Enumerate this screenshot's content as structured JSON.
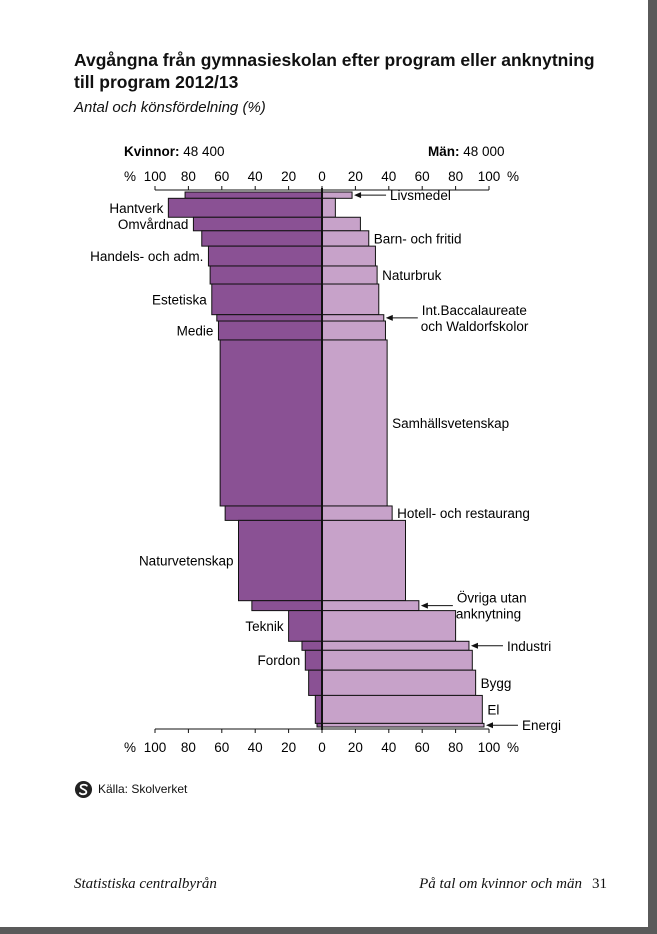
{
  "page": {
    "title": "Avgångna från gymnasieskolan efter program eller anknytning till program 2012/13",
    "subtitle": "Antal och könsfördelning (%)",
    "source": "Källa: Skolverket",
    "footer_left": "Statistiska centralbyrån",
    "footer_right": "På tal om kvinnor och män",
    "page_number": "31"
  },
  "chart_data": {
    "type": "bar",
    "orientation": "horizontal-diverging",
    "left_group": {
      "label": "Kvinnor:",
      "total": "48 400"
    },
    "right_group": {
      "label": "Män:",
      "total": "48 000"
    },
    "axis_ticks": [
      "100",
      "80",
      "60",
      "40",
      "20",
      "0",
      "20",
      "40",
      "60",
      "80",
      "100"
    ],
    "axis_unit": "%",
    "xlim": [
      0,
      100
    ],
    "colors": {
      "women": "#8a5194",
      "men": "#c7a2c9",
      "outline": "#111111"
    },
    "categories": [
      {
        "label": "Livsmedel",
        "side": "right",
        "arrow": true,
        "women": 82,
        "men": 18,
        "count": 700
      },
      {
        "label": "Hantverk",
        "side": "left",
        "arrow": false,
        "women": 92,
        "men": 8,
        "count": 2100
      },
      {
        "label": "Omvårdnad",
        "side": "left",
        "arrow": false,
        "women": 77,
        "men": 23,
        "count": 1500
      },
      {
        "label": "Barn- och fritid",
        "side": "right",
        "arrow": false,
        "women": 72,
        "men": 28,
        "count": 1700
      },
      {
        "label": "Handels- och adm.",
        "side": "left",
        "arrow": false,
        "women": 68,
        "men": 32,
        "count": 2200
      },
      {
        "label": "Naturbruk",
        "side": "right",
        "arrow": false,
        "women": 67,
        "men": 33,
        "count": 2000
      },
      {
        "label": "Estetiska",
        "side": "left",
        "arrow": false,
        "women": 66,
        "men": 34,
        "count": 3400
      },
      {
        "label": "Int.Baccalaureate och Waldorfskolor",
        "side": "right",
        "arrow": true,
        "women": 63,
        "men": 37,
        "count": 700
      },
      {
        "label": "Medie",
        "side": "left",
        "arrow": false,
        "women": 62,
        "men": 38,
        "count": 2100
      },
      {
        "label": "Samhällsvetenskap",
        "side": "right",
        "arrow": false,
        "women": 61,
        "men": 39,
        "count": 18400
      },
      {
        "label": "Hotell- och restaurang",
        "side": "right",
        "arrow": false,
        "women": 58,
        "men": 42,
        "count": 1600
      },
      {
        "label": "Naturvetenskap",
        "side": "left",
        "arrow": false,
        "women": 50,
        "men": 50,
        "count": 8900
      },
      {
        "label": "Övriga utan anknytning",
        "side": "right",
        "arrow": true,
        "women": 42,
        "men": 58,
        "count": 1100
      },
      {
        "label": "Teknik",
        "side": "left",
        "arrow": false,
        "women": 20,
        "men": 80,
        "count": 3400
      },
      {
        "label": "Industri",
        "side": "right",
        "arrow": true,
        "women": 12,
        "men": 88,
        "count": 1000
      },
      {
        "label": "Fordon",
        "side": "left",
        "arrow": false,
        "women": 10,
        "men": 90,
        "count": 2200
      },
      {
        "label": "Bygg",
        "side": "right",
        "arrow": false,
        "women": 8,
        "men": 92,
        "count": 2800
      },
      {
        "label": "El",
        "side": "right",
        "arrow": false,
        "women": 4,
        "men": 96,
        "count": 3100
      },
      {
        "label": "Energi",
        "side": "right",
        "arrow": true,
        "women": 3,
        "men": 97,
        "count": 400
      }
    ]
  }
}
